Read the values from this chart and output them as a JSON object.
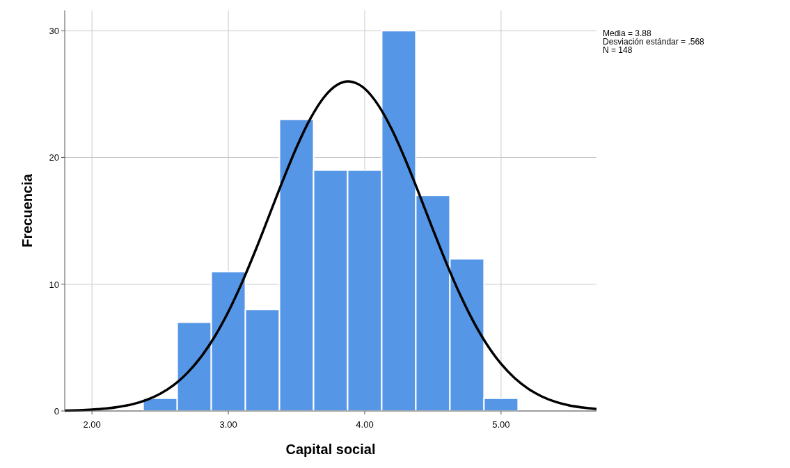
{
  "chart_data": {
    "type": "histogram",
    "xlabel": "Capital social",
    "ylabel": "Frecuencia",
    "bins": [
      2.375,
      2.625,
      2.875,
      3.125,
      3.375,
      3.625,
      3.875,
      4.125,
      4.375,
      4.625,
      4.875,
      5.125
    ],
    "values": [
      1,
      7,
      11,
      8,
      23,
      19,
      19,
      30,
      17,
      12,
      1
    ],
    "color": "#5596e6",
    "series": [
      {
        "type": "line",
        "color": "#000000",
        "x": [
          1.8,
          1.9,
          2.0,
          2.1,
          2.2,
          2.3,
          2.4,
          2.5,
          2.6,
          2.7,
          2.8,
          2.9,
          3.0,
          3.1,
          3.2,
          3.3,
          3.4,
          3.5,
          3.6,
          3.7,
          3.8,
          3.88,
          3.9,
          4.0,
          4.1,
          4.2,
          4.3,
          4.4,
          4.5,
          4.6,
          4.7,
          4.8,
          4.9,
          5.0,
          5.1,
          5.2,
          5.3,
          5.4,
          5.5,
          5.6,
          5.7
        ],
        "values": [
          0.03,
          0.06,
          0.11,
          0.19,
          0.33,
          0.54,
          0.87,
          1.36,
          2.05,
          3.01,
          4.27,
          5.87,
          7.83,
          10.13,
          12.7,
          15.44,
          18.19,
          20.79,
          23.03,
          24.73,
          25.74,
          26,
          25.98,
          25.43,
          24.12,
          22.19,
          19.78,
          17.1,
          14.33,
          11.64,
          9.17,
          7.0,
          5.18,
          3.72,
          2.59,
          1.75,
          1.14,
          0.72,
          0.44,
          0.27,
          0.15
        ]
      }
    ],
    "xlim": [
      1.8,
      5.7
    ],
    "xticks": [
      {
        "value": 2,
        "label": "2.00"
      },
      {
        "value": 3,
        "label": "3.00"
      },
      {
        "value": 4,
        "label": "4.00"
      },
      {
        "value": 5,
        "label": "5.00"
      }
    ],
    "ylim": [
      0,
      31.6
    ],
    "yticks": [
      0,
      10,
      20,
      30
    ],
    "grid": true,
    "annotations": [
      "Media = 3.88",
      "Desviación estándar = .568",
      "N = 148"
    ]
  }
}
